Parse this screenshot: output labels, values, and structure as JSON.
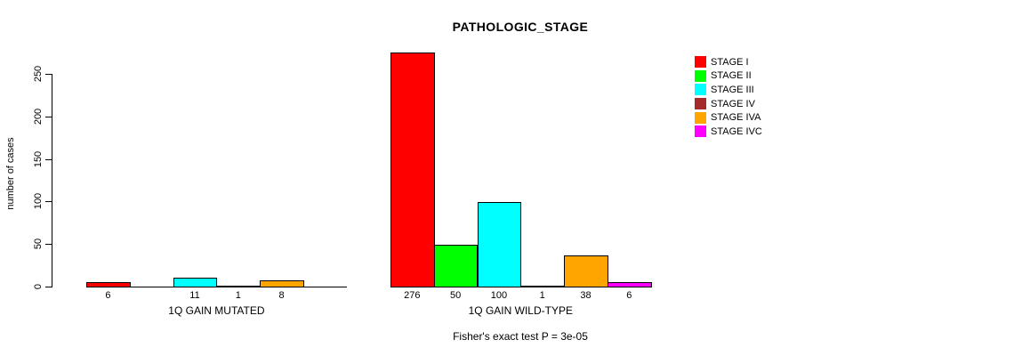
{
  "chart_data": {
    "type": "bar",
    "title": "PATHOLOGIC_STAGE",
    "ylabel": "number of cases",
    "footer": "Fisher's exact test P = 3e-05",
    "yticks": [
      0,
      50,
      100,
      150,
      200,
      250
    ],
    "ylim": [
      0,
      276
    ],
    "grid": false,
    "legend_position": "right",
    "legend": [
      {
        "label": "STAGE I",
        "color": "#FF0000"
      },
      {
        "label": "STAGE II",
        "color": "#00FF00"
      },
      {
        "label": "STAGE III",
        "color": "#00FFFF"
      },
      {
        "label": "STAGE IV",
        "color": "#A52A2A"
      },
      {
        "label": "STAGE IVA",
        "color": "#FFA500"
      },
      {
        "label": "STAGE IVC",
        "color": "#FF00FF"
      }
    ],
    "groups": [
      {
        "label": "1Q GAIN MUTATED",
        "values": [
          6,
          0,
          11,
          1,
          8,
          0
        ]
      },
      {
        "label": "1Q GAIN WILD-TYPE",
        "values": [
          276,
          50,
          100,
          1,
          38,
          6
        ]
      }
    ]
  }
}
